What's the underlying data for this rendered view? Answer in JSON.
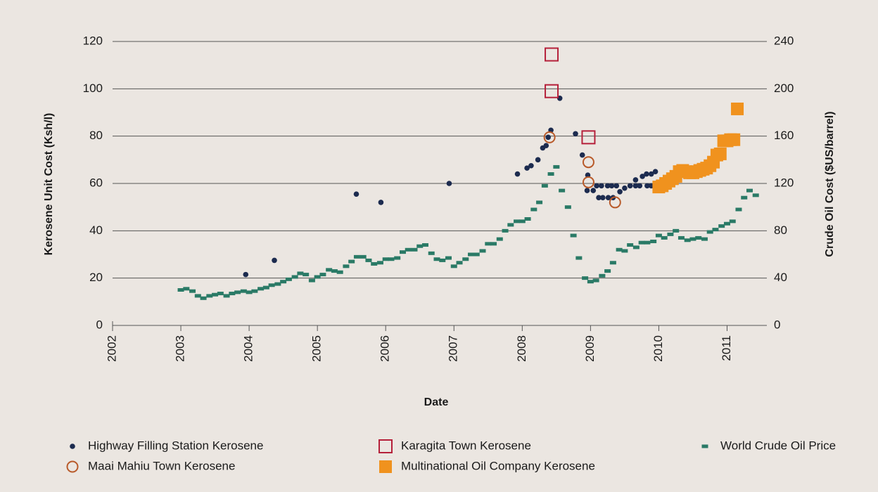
{
  "chart_data": {
    "type": "scatter",
    "xlabel": "Date",
    "ylabel": "Kerosene Unit Cost (Ksh/l)",
    "y2label": "Crude Oil Cost ($US/barrel)",
    "xlim": [
      2002,
      2011.5
    ],
    "xticks": [
      2002,
      2003,
      2004,
      2005,
      2006,
      2007,
      2008,
      2009,
      2010,
      2011
    ],
    "ylim": [
      0,
      120
    ],
    "yticks": [
      0,
      20,
      40,
      60,
      80,
      100,
      120
    ],
    "y2lim": [
      0,
      240
    ],
    "y2ticks": [
      0,
      40,
      80,
      120,
      160,
      200,
      240
    ],
    "grid": true,
    "legend": "bottom",
    "series": [
      {
        "name": "Highway Filling Station Kerosene",
        "color": "#1c2b4f",
        "marker": "dot",
        "x": [
          2003.95,
          2004.37,
          2005.57,
          2005.93,
          2006.93,
          2007.93,
          2008.07,
          2008.13,
          2008.23,
          2008.3,
          2008.35,
          2008.38,
          2008.42,
          2008.55,
          2008.78,
          2008.88,
          2008.96,
          2008.95,
          2009.04,
          2009.09,
          2009.16,
          2009.25,
          2009.31,
          2009.38,
          2009.12,
          2009.18,
          2009.26,
          2009.33,
          2009.43,
          2009.5,
          2009.58,
          2009.66,
          2009.72,
          2009.66,
          2009.76,
          2009.82,
          2009.89,
          2009.95,
          2009.83,
          2009.89
        ],
        "values": [
          21.5,
          27.5,
          55.5,
          52,
          60,
          64,
          66.5,
          67.5,
          70,
          75,
          76,
          79.5,
          82.5,
          96,
          81,
          72,
          63.5,
          57,
          57,
          59,
          59,
          59,
          59,
          59,
          54,
          54,
          54,
          54,
          56.5,
          58,
          59,
          59,
          59,
          61.5,
          63,
          64,
          64,
          65,
          59,
          59
        ]
      },
      {
        "name": "Karagita Town Kerosene",
        "color": "#b5203a",
        "marker": "open-square",
        "x": [
          2008.43,
          2008.43,
          2008.97
        ],
        "values": [
          114.5,
          99,
          79.5
        ]
      },
      {
        "name": "Maai Mahiu Town Kerosene",
        "color": "#b85a2a",
        "marker": "open-circle",
        "x": [
          2008.4,
          2008.97,
          2008.97,
          2009.36
        ],
        "values": [
          79.5,
          69,
          60.5,
          52
        ]
      },
      {
        "name": "Multinational Oil Company Kerosene",
        "color": "#f0921e",
        "marker": "square",
        "x": [
          2010.0,
          2010.05,
          2010.1,
          2010.15,
          2010.2,
          2010.25,
          2010.3,
          2010.35,
          2010.4,
          2010.45,
          2010.5,
          2010.55,
          2010.6,
          2010.65,
          2010.7,
          2010.75,
          2010.8,
          2010.85,
          2010.9,
          2010.95,
          2011.0,
          2011.05,
          2011.1,
          2011.15
        ],
        "values": [
          58.5,
          59,
          60,
          61,
          62,
          63,
          65,
          65.5,
          65,
          64.5,
          64.5,
          65,
          65.5,
          66,
          66.5,
          67.5,
          69,
          72,
          72.5,
          78,
          78,
          78.5,
          78.5,
          91.5
        ]
      },
      {
        "name": "World Crude Oil Price",
        "color": "#2a7a66",
        "marker": "dash",
        "axis": "y2",
        "x": [
          2003.0,
          2003.08,
          2003.17,
          2003.25,
          2003.33,
          2003.42,
          2003.5,
          2003.58,
          2003.67,
          2003.75,
          2003.83,
          2003.92,
          2004.0,
          2004.08,
          2004.17,
          2004.25,
          2004.33,
          2004.42,
          2004.5,
          2004.58,
          2004.67,
          2004.75,
          2004.83,
          2004.92,
          2005.0,
          2005.08,
          2005.17,
          2005.25,
          2005.33,
          2005.42,
          2005.5,
          2005.58,
          2005.67,
          2005.75,
          2005.83,
          2005.92,
          2006.0,
          2006.08,
          2006.17,
          2006.25,
          2006.33,
          2006.42,
          2006.5,
          2006.58,
          2006.67,
          2006.75,
          2006.83,
          2006.92,
          2007.0,
          2007.08,
          2007.17,
          2007.25,
          2007.33,
          2007.42,
          2007.5,
          2007.58,
          2007.67,
          2007.75,
          2007.83,
          2007.92,
          2008.0,
          2008.08,
          2008.17,
          2008.25,
          2008.33,
          2008.42,
          2008.5,
          2008.58,
          2008.67,
          2008.75,
          2008.83,
          2008.92,
          2009.0,
          2009.08,
          2009.17,
          2009.25,
          2009.33,
          2009.42,
          2009.5,
          2009.58,
          2009.67,
          2009.75,
          2009.83,
          2009.92,
          2010.0,
          2010.08,
          2010.17,
          2010.25,
          2010.33,
          2010.42,
          2010.5,
          2010.58,
          2010.67,
          2010.75,
          2010.83,
          2010.92,
          2011.0,
          2011.08,
          2011.17,
          2011.25,
          2011.33,
          2011.42
        ],
        "values": [
          30,
          31,
          29,
          25,
          23,
          25,
          26,
          27,
          25,
          27,
          28,
          29,
          28,
          29,
          31,
          32,
          34,
          35,
          37,
          39,
          41,
          44,
          43,
          38,
          41,
          43,
          47,
          46,
          45,
          50,
          54,
          58,
          58,
          55,
          52,
          53,
          56,
          56,
          57,
          62,
          64,
          64,
          67,
          68,
          61,
          56,
          55,
          57,
          50,
          53,
          56,
          60,
          60,
          63,
          69,
          69,
          73,
          80,
          85,
          88,
          88,
          90,
          98,
          104,
          118,
          128,
          134,
          114,
          100,
          76,
          57,
          40,
          37,
          38,
          42,
          46,
          53,
          64,
          63,
          68,
          66,
          70,
          70,
          71,
          76,
          74,
          77,
          80,
          74,
          72,
          73,
          74,
          73,
          79,
          81,
          84,
          86,
          88,
          98,
          108,
          114,
          110
        ]
      }
    ]
  }
}
